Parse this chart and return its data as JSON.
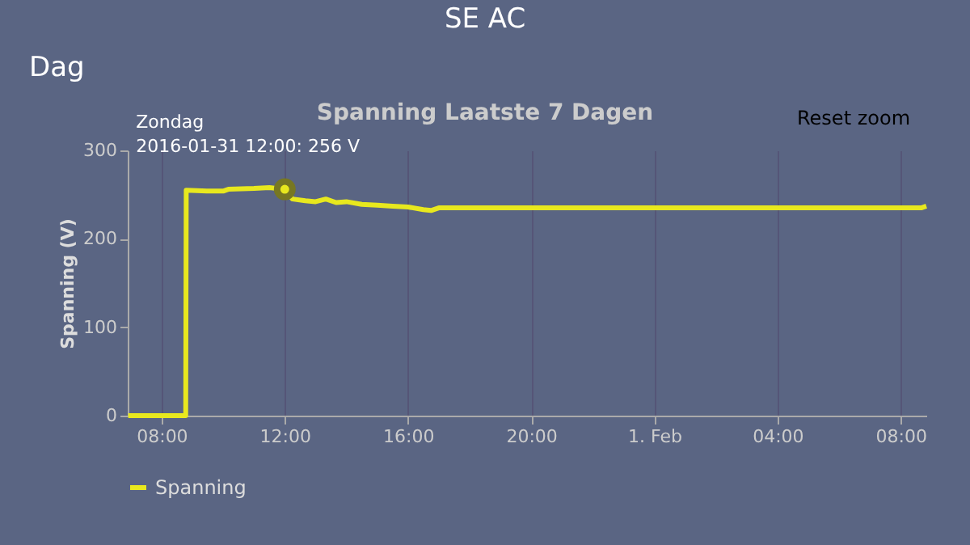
{
  "chart_data": {
    "type": "line",
    "title": "Spanning Laatste 7 Dagen",
    "ylabel": "Spanning (V)",
    "x": [
      "2016-01-31T06:55",
      "2016-01-31T08:47",
      "2016-01-31T08:48",
      "2016-01-31T09:30",
      "2016-01-31T10:00",
      "2016-01-31T10:10",
      "2016-01-31T11:00",
      "2016-01-31T11:30",
      "2016-01-31T12:00",
      "2016-01-31T12:15",
      "2016-01-31T12:40",
      "2016-01-31T13:00",
      "2016-01-31T13:20",
      "2016-01-31T13:40",
      "2016-01-31T14:00",
      "2016-01-31T14:30",
      "2016-01-31T15:00",
      "2016-01-31T15:30",
      "2016-01-31T16:00",
      "2016-01-31T16:30",
      "2016-01-31T16:45",
      "2016-01-31T17:00",
      "2016-01-31T20:00",
      "2016-02-01T04:00",
      "2016-02-01T08:40",
      "2016-02-01T08:50"
    ],
    "series": [
      {
        "name": "Spanning",
        "color": "#e8e81e",
        "values": [
          0,
          0,
          255,
          254,
          254,
          256,
          257,
          258,
          256,
          245,
          243,
          242,
          245,
          241,
          242,
          239,
          238,
          237,
          236,
          233,
          232,
          235,
          235,
          235,
          235,
          237
        ]
      }
    ],
    "xlim": [
      "2016-01-31T06:54",
      "2016-02-01T08:50"
    ],
    "xticks": [
      {
        "value": "2016-01-31T08:00",
        "label": "08:00"
      },
      {
        "value": "2016-01-31T12:00",
        "label": "12:00"
      },
      {
        "value": "2016-01-31T16:00",
        "label": "16:00"
      },
      {
        "value": "2016-01-31T20:00",
        "label": "20:00"
      },
      {
        "value": "2016-02-01T00:00",
        "label": "1. Feb"
      },
      {
        "value": "2016-02-01T04:00",
        "label": "04:00"
      },
      {
        "value": "2016-02-01T08:00",
        "label": "08:00"
      }
    ],
    "ylim": [
      0,
      300
    ],
    "yticks": [
      0,
      100,
      200,
      300
    ],
    "grid": "x",
    "legend": "bottom",
    "annotations": [
      {
        "text": "Zondag\n2016-01-31 12:00: 256 V",
        "x": "2016-01-31T12:00",
        "y": 256
      },
      "SE AC",
      "Dag",
      "Reset zoom"
    ]
  }
}
